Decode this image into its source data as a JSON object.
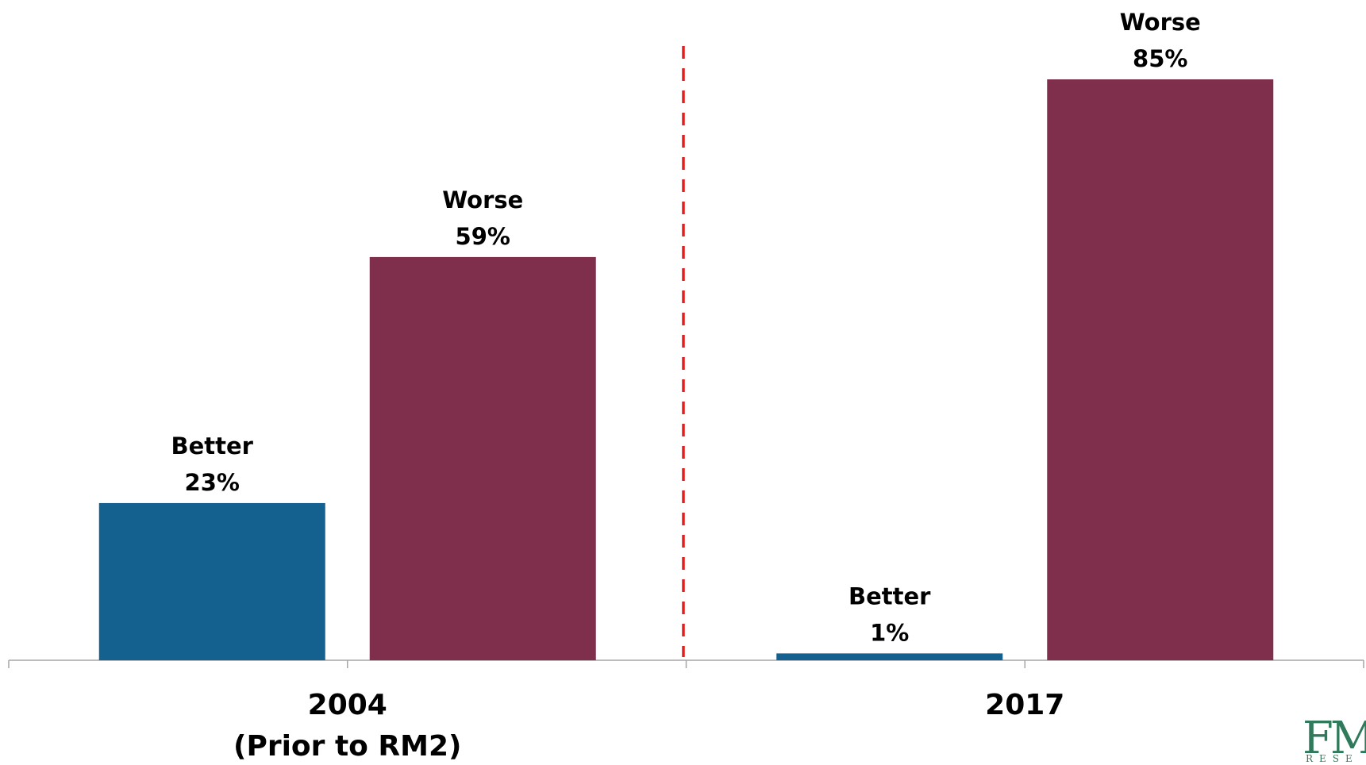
{
  "chart_data": {
    "type": "bar",
    "groups": [
      {
        "label": "2004",
        "sublabel": "(Prior to RM2)",
        "bars": [
          {
            "name": "Better",
            "value": 23,
            "display": "23%",
            "color": "#14618f"
          },
          {
            "name": "Worse",
            "value": 59,
            "display": "59%",
            "color": "#7f2f4c"
          }
        ]
      },
      {
        "label": "2017",
        "sublabel": "",
        "bars": [
          {
            "name": "Better",
            "value": 1,
            "display": "1%",
            "color": "#14618f"
          },
          {
            "name": "Worse",
            "value": 85,
            "display": "85%",
            "color": "#7f2f4c"
          }
        ]
      }
    ],
    "ylim": [
      0,
      85
    ],
    "grid": false,
    "divider": {
      "style": "dashed",
      "color": "#e0201f"
    }
  },
  "logo": {
    "mark": "FM",
    "sub": "RESE"
  }
}
